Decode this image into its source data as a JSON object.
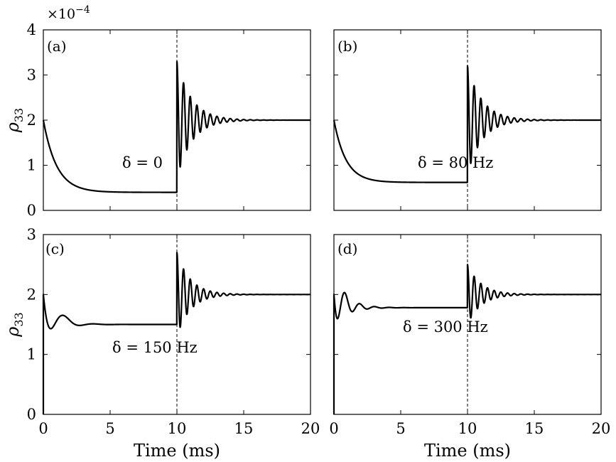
{
  "figure": {
    "multiplier": "×10",
    "multiplier_exp": "−4",
    "xlabel": "Time (ms)",
    "ylabel_main": "ρ",
    "ylabel_sub": "33"
  },
  "chart_data": [
    {
      "type": "line",
      "panel": "(a)",
      "annotation": "δ = 0",
      "xlim": [
        0,
        20
      ],
      "ylim": [
        0,
        4
      ],
      "xticks": [
        0,
        5,
        10,
        15,
        20
      ],
      "yticks": [
        0,
        1,
        2,
        3,
        4
      ],
      "xtick_labels": [
        "",
        "",
        "",
        "",
        ""
      ],
      "ytick_labels": [
        "0",
        "1",
        "2",
        "3",
        "4"
      ],
      "switch_time": 10,
      "series": [
        {
          "name": "rho33",
          "start": 2.0,
          "steady1": 0.4,
          "tau1": 1.0,
          "osc_amp1": 0,
          "osc_freq1": 0,
          "final": 2.0,
          "jump_peak": 3.3,
          "ring_freq": 2.0,
          "ring_tau": 1.1
        }
      ]
    },
    {
      "type": "line",
      "panel": "(b)",
      "annotation": "δ = 80 Hz",
      "xlim": [
        0,
        20
      ],
      "ylim": [
        0,
        4
      ],
      "xticks": [
        0,
        5,
        10,
        15,
        20
      ],
      "yticks": [
        0,
        1,
        2,
        3,
        4
      ],
      "xtick_labels": [
        "",
        "",
        "",
        "",
        ""
      ],
      "ytick_labels": [
        "",
        "",
        "",
        "",
        ""
      ],
      "switch_time": 10,
      "series": [
        {
          "name": "rho33",
          "start": 2.0,
          "steady1": 0.62,
          "tau1": 0.9,
          "osc_amp1": 0,
          "osc_freq1": 0,
          "final": 2.0,
          "jump_peak": 3.2,
          "ring_freq": 2.0,
          "ring_tau": 1.1
        }
      ]
    },
    {
      "type": "line",
      "panel": "(c)",
      "annotation": "δ = 150 Hz",
      "xlim": [
        0,
        20
      ],
      "ylim": [
        0,
        3
      ],
      "xticks": [
        0,
        5,
        10,
        15,
        20
      ],
      "yticks": [
        0,
        1,
        2,
        3
      ],
      "xtick_labels": [
        "0",
        "5",
        "10",
        "15",
        "20"
      ],
      "ytick_labels": [
        "0",
        "1",
        "2",
        "3"
      ],
      "switch_time": 10,
      "series": [
        {
          "name": "rho33",
          "start": 2.0,
          "steady1": 1.5,
          "tau1": 0.7,
          "osc_amp1": 0.55,
          "osc_freq1": 0.45,
          "final": 2.0,
          "jump_peak": 2.7,
          "ring_freq": 2.0,
          "ring_tau": 1.0
        }
      ]
    },
    {
      "type": "line",
      "panel": "(d)",
      "annotation": "δ = 300 Hz",
      "xlim": [
        0,
        20
      ],
      "ylim": [
        0,
        3
      ],
      "xticks": [
        0,
        5,
        10,
        15,
        20
      ],
      "yticks": [
        0,
        1,
        2,
        3
      ],
      "xtick_labels": [
        "0",
        "5",
        "10",
        "15",
        "20"
      ],
      "ytick_labels": [
        "",
        "",
        "",
        ""
      ],
      "switch_time": 10,
      "series": [
        {
          "name": "rho33",
          "start": 2.0,
          "steady1": 1.78,
          "tau1": 0.7,
          "osc_amp1": 0.45,
          "osc_freq1": 0.9,
          "final": 2.0,
          "jump_peak": 2.5,
          "ring_freq": 2.0,
          "ring_tau": 1.0
        }
      ]
    }
  ]
}
